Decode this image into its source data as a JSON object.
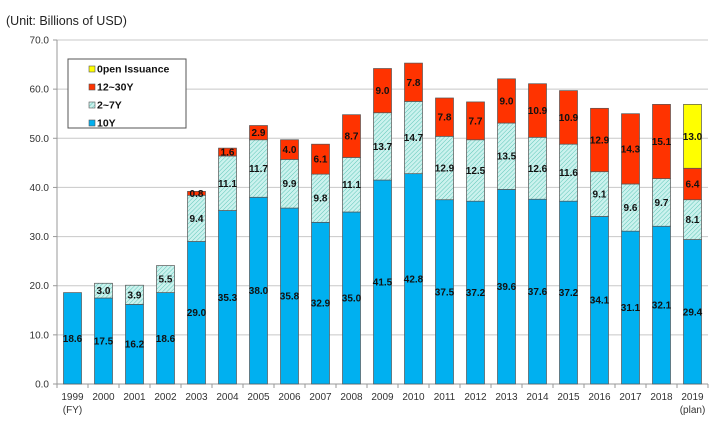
{
  "chart_data": {
    "type": "bar",
    "stacked": true,
    "title": "",
    "unit_label": "(Unit: Billions of USD)",
    "xlabel": "(FY)",
    "ylabel": "",
    "ylim": [
      0,
      70
    ],
    "yticks": [
      "0.0",
      "10.0",
      "20.0",
      "30.0",
      "40.0",
      "50.0",
      "60.0",
      "70.0"
    ],
    "grid": true,
    "legend_position": "top-left",
    "categories": [
      "1999",
      "2000",
      "2001",
      "2002",
      "2003",
      "2004",
      "2005",
      "2006",
      "2007",
      "2008",
      "2009",
      "2010",
      "2011",
      "2012",
      "2013",
      "2014",
      "2015",
      "2016",
      "2017",
      "2018",
      "2019"
    ],
    "category_sublabels": {
      "2019": "(plan)"
    },
    "series": [
      {
        "name": "10Y",
        "color": "#00b0f0",
        "pattern": "solid",
        "values": [
          18.6,
          17.5,
          16.2,
          18.6,
          29.0,
          35.3,
          38.0,
          35.8,
          32.9,
          35.0,
          41.5,
          42.8,
          37.5,
          37.2,
          39.6,
          37.6,
          37.2,
          34.1,
          31.1,
          32.1,
          29.4
        ]
      },
      {
        "name": "2~7Y",
        "color": "#ccf2ee",
        "pattern": "hatched",
        "values": [
          null,
          3.0,
          3.9,
          5.5,
          9.4,
          11.1,
          11.7,
          9.9,
          9.8,
          11.1,
          13.7,
          14.7,
          12.9,
          12.5,
          13.5,
          12.6,
          11.6,
          9.1,
          9.6,
          9.7,
          8.1
        ]
      },
      {
        "name": "12~30Y",
        "color": "#ff3300",
        "pattern": "solid",
        "values": [
          null,
          null,
          null,
          null,
          0.8,
          1.6,
          2.9,
          4.0,
          6.1,
          8.7,
          9.0,
          7.8,
          7.8,
          7.7,
          9.0,
          10.9,
          10.9,
          12.9,
          14.3,
          15.1,
          6.4
        ]
      },
      {
        "name": "0pen Issuance",
        "color": "#ffff00",
        "pattern": "solid",
        "values": [
          null,
          null,
          null,
          null,
          null,
          null,
          null,
          null,
          null,
          null,
          null,
          null,
          null,
          null,
          null,
          null,
          null,
          null,
          null,
          null,
          13.0
        ]
      }
    ],
    "legend_order": [
      "0pen Issuance",
      "12~30Y",
      "2~7Y",
      "10Y"
    ]
  }
}
